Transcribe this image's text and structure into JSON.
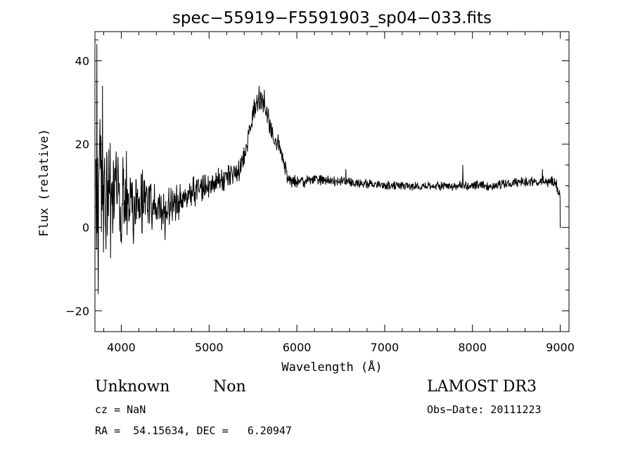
{
  "chart_data": {
    "type": "line",
    "title": "spec−55919−F5591903_sp04−033.fits",
    "xlabel": "Wavelength (Å)",
    "ylabel": "Flux (relative)",
    "xlim": [
      3700,
      9100
    ],
    "ylim": [
      -25,
      47
    ],
    "xticks": [
      4000,
      5000,
      6000,
      7000,
      8000,
      9000
    ],
    "xtick_labels": [
      "4000",
      "5000",
      "6000",
      "7000",
      "8000",
      "9000"
    ],
    "yticks": [
      -20,
      0,
      20,
      40
    ],
    "ytick_labels": [
      "−20",
      "0",
      "20",
      "40"
    ],
    "xminor_step": 200,
    "yminor_step": 5,
    "grid": false,
    "series": [
      {
        "name": "flux",
        "anchors_x": [
          3700,
          3750,
          3800,
          3900,
          4000,
          4100,
          4200,
          4300,
          4400,
          4500,
          4600,
          4700,
          4800,
          4900,
          5000,
          5100,
          5200,
          5300,
          5350,
          5400,
          5450,
          5500,
          5550,
          5600,
          5650,
          5700,
          5750,
          5800,
          5850,
          5900,
          5950,
          6000,
          6100,
          6200,
          6300,
          6400,
          6500,
          6600,
          6700,
          6800,
          7000,
          7200,
          7400,
          7600,
          7800,
          8000,
          8200,
          8400,
          8600,
          8800,
          8900,
          8960,
          9000
        ],
        "anchors_y": [
          10,
          12,
          9,
          8,
          7,
          6,
          6,
          5.5,
          5,
          4,
          6,
          7,
          8,
          9,
          10,
          11,
          12,
          13,
          14,
          17,
          22,
          27,
          30,
          31,
          28,
          24,
          21,
          20,
          16,
          12,
          11,
          11,
          11,
          11.5,
          11.5,
          11,
          11,
          11,
          10.5,
          10.5,
          10,
          10,
          10,
          10,
          10,
          10,
          10,
          10.5,
          11,
          11,
          11,
          10,
          8
        ],
        "noise_x": [
          3700,
          3800,
          4000,
          4300,
          4600,
          5000,
          5300,
          5600,
          5900,
          6000,
          7000,
          8500,
          9000
        ],
        "noise_amp": [
          14,
          12,
          9,
          5,
          3.5,
          2.5,
          2,
          2,
          1.5,
          1.1,
          0.8,
          0.9,
          1.2
        ],
        "spikes": [
          {
            "x": 3724,
            "y": 44
          },
          {
            "x": 3740,
            "y": -16
          },
          {
            "x": 3760,
            "y": 26
          },
          {
            "x": 3787,
            "y": 34
          },
          {
            "x": 3800,
            "y": -6
          },
          {
            "x": 4500,
            "y": -3
          },
          {
            "x": 5570,
            "y": 34
          },
          {
            "x": 5630,
            "y": 33
          },
          {
            "x": 6560,
            "y": 14
          },
          {
            "x": 7890,
            "y": 15
          },
          {
            "x": 8800,
            "y": 14
          }
        ],
        "tail": [
          {
            "x": 9000,
            "y": 0
          },
          {
            "x": 9010,
            "y": 0
          }
        ]
      }
    ]
  },
  "info": {
    "object_type": "Unknown",
    "subclass": "Non",
    "survey": "LAMOST DR3",
    "redshift": "cz = NaN",
    "obs_date": "Obs−Date: 20111223",
    "coords": "RA =  54.15634, DEC =   6.20947"
  }
}
